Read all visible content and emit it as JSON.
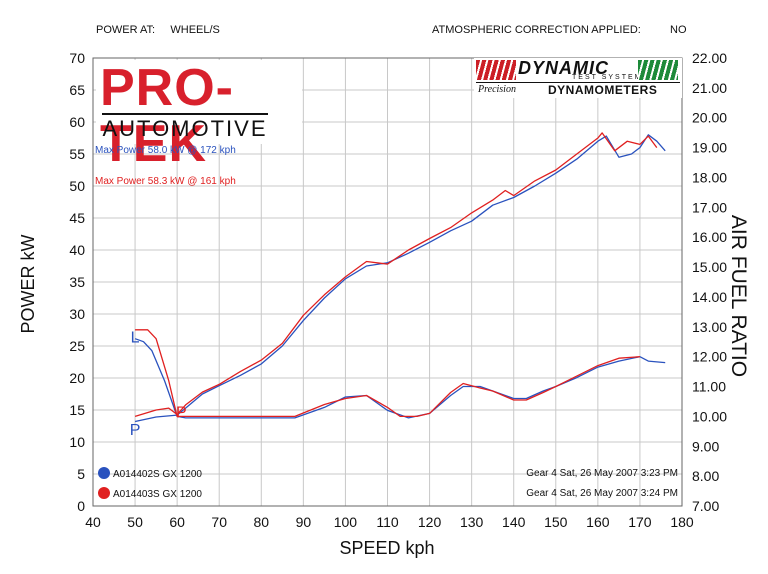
{
  "header": {
    "power_at_label": "POWER AT:",
    "power_at_value": "WHEEL/S",
    "correction_label": "ATMOSPHERIC CORRECTION APPLIED:",
    "correction_value": "NO"
  },
  "logos": {
    "protek_main": "PRO-TEK",
    "protek_sub": "AUTOMOTIVE",
    "dynamic_name": "DYNAMIC",
    "dynamic_sub": "TEST SYSTEMS",
    "precision": "Precision",
    "dynamometers": "DYNAMOMETERS"
  },
  "max_power": {
    "blue": "Max Power 58.0 kW @ 172 kph",
    "red": "Max Power 58.3 kW @ 161 kph"
  },
  "legend": [
    {
      "id": "A014402S GX 1200",
      "info": "Gear 4 Sat, 26 May 2007 3:23 PM",
      "color": "#2a52be"
    },
    {
      "id": "A014403S GX 1200",
      "info": "Gear 4 Sat, 26 May 2007 3:24 PM",
      "color": "#e02020"
    }
  ],
  "colors": {
    "blue": "#2a52be",
    "red": "#e02020",
    "grid": "#c8c8c8"
  },
  "chart_data": {
    "type": "line",
    "title": "",
    "xlabel": "SPEED kph",
    "ylabel": "POWER kW",
    "y2label": "AIR FUEL RATIO",
    "xlim": [
      40,
      180
    ],
    "ylim": [
      0,
      70
    ],
    "y2lim": [
      7.0,
      22.0
    ],
    "x_ticks": [
      "40",
      "50",
      "60",
      "70",
      "80",
      "90",
      "100",
      "110",
      "120",
      "130",
      "140",
      "150",
      "160",
      "170",
      "180"
    ],
    "y_ticks": [
      "0",
      "5",
      "10",
      "15",
      "20",
      "25",
      "30",
      "35",
      "40",
      "45",
      "50",
      "55",
      "60",
      "65",
      "70"
    ],
    "y2_ticks": [
      "7.00",
      "8.00",
      "9.00",
      "10.00",
      "11.00",
      "12.00",
      "13.00",
      "14.00",
      "15.00",
      "16.00",
      "17.00",
      "18.00",
      "19.00",
      "20.00",
      "21.00",
      "22.00"
    ],
    "grid": true,
    "series": [
      {
        "name": "A014402S GX 1200",
        "color": "#2a52be",
        "power_x": [
          50,
          55,
          60,
          62,
          66,
          70,
          75,
          80,
          85,
          90,
          95,
          100,
          105,
          110,
          115,
          120,
          125,
          130,
          135,
          140,
          145,
          150,
          155,
          160,
          162,
          165,
          168,
          170,
          172,
          174,
          176
        ],
        "power_y": [
          13.2,
          13.9,
          14.2,
          15.3,
          17.5,
          18.8,
          20.4,
          22.2,
          25.0,
          29.0,
          32.5,
          35.5,
          37.5,
          38.0,
          39.5,
          41.2,
          43.0,
          44.5,
          47.0,
          48.2,
          50.0,
          52.0,
          54.2,
          57.0,
          57.8,
          54.5,
          55.0,
          56.0,
          58.0,
          57.0,
          55.5
        ],
        "afr_x": [
          50,
          52,
          54,
          57,
          60,
          62,
          66,
          70,
          80,
          88,
          95,
          100,
          105,
          110,
          115,
          120,
          125,
          128,
          132,
          135,
          140,
          143,
          147,
          150,
          155,
          160,
          165,
          170,
          172,
          176
        ],
        "afr_y": [
          12.6,
          12.5,
          12.2,
          11.2,
          10.0,
          9.95,
          9.95,
          9.95,
          9.95,
          9.95,
          10.3,
          10.65,
          10.7,
          10.2,
          9.95,
          10.1,
          10.7,
          11.0,
          11.0,
          10.85,
          10.6,
          10.6,
          10.85,
          11.0,
          11.3,
          11.65,
          11.85,
          12.0,
          11.85,
          11.8
        ]
      },
      {
        "name": "A014403S GX 1200",
        "color": "#e02020",
        "power_x": [
          50,
          55,
          58,
          60,
          62,
          66,
          70,
          75,
          80,
          85,
          90,
          95,
          100,
          105,
          110,
          115,
          120,
          125,
          130,
          135,
          138,
          140,
          145,
          150,
          155,
          160,
          161,
          164,
          167,
          170,
          172,
          174
        ],
        "power_y": [
          14.0,
          15.0,
          15.3,
          14.3,
          15.8,
          17.8,
          19.0,
          21.0,
          22.8,
          25.4,
          29.8,
          33.0,
          35.8,
          38.2,
          37.8,
          40.0,
          41.8,
          43.5,
          45.8,
          47.8,
          49.3,
          48.5,
          50.8,
          52.5,
          55.0,
          57.5,
          58.3,
          55.5,
          57.0,
          56.5,
          57.8,
          56.0
        ],
        "afr_x": [
          50,
          53,
          55,
          58,
          60,
          62,
          66,
          70,
          80,
          88,
          95,
          100,
          105,
          110,
          113,
          117,
          120,
          125,
          128,
          132,
          135,
          140,
          143,
          147,
          150,
          155,
          160,
          165,
          170
        ],
        "afr_y": [
          12.9,
          12.9,
          12.6,
          11.2,
          10.0,
          10.0,
          10.0,
          10.0,
          10.0,
          10.0,
          10.4,
          10.6,
          10.7,
          10.3,
          10.0,
          10.0,
          10.1,
          10.8,
          11.1,
          10.95,
          10.85,
          10.55,
          10.55,
          10.8,
          11.0,
          11.35,
          11.7,
          11.95,
          12.0
        ]
      }
    ],
    "markers": [
      {
        "label": "L",
        "x": 50,
        "y": 26.5,
        "color": "#2a52be"
      },
      {
        "label": "P",
        "x": 50,
        "y": 12.0,
        "color": "#2a52be"
      },
      {
        "label": "P",
        "x": 61,
        "y": 14.8,
        "color": "#e02020"
      }
    ]
  }
}
